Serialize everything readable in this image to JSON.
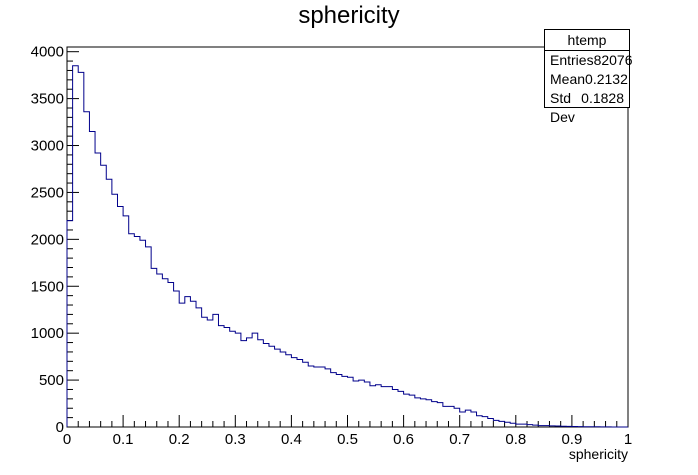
{
  "title": "sphericity",
  "stats": {
    "name": "htemp",
    "rows": [
      {
        "label": "Entries",
        "value": "82076"
      },
      {
        "label": "Mean",
        "value": "0.2132"
      },
      {
        "label": "Std Dev",
        "value": "0.1828"
      }
    ]
  },
  "chart_data": {
    "type": "bar",
    "title": "sphericity",
    "xlabel": "sphericity",
    "ylabel": "",
    "xlim": [
      0,
      1
    ],
    "ylim": [
      0,
      4050
    ],
    "bin_width": 0.01,
    "x_ticks": [
      0,
      0.1,
      0.2,
      0.3,
      0.4,
      0.5,
      0.6,
      0.7,
      0.8,
      0.9,
      1
    ],
    "x_tick_labels": [
      "0",
      "0.1",
      "0.2",
      "0.3",
      "0.4",
      "0.5",
      "0.6",
      "0.7",
      "0.8",
      "0.9",
      "1"
    ],
    "y_ticks": [
      0,
      500,
      1000,
      1500,
      2000,
      2500,
      3000,
      3500,
      4000
    ],
    "y_tick_labels": [
      "0",
      "500",
      "1000",
      "1500",
      "2000",
      "2500",
      "3000",
      "3500",
      "4000"
    ],
    "line_color": "#00008b",
    "series": [
      {
        "name": "htemp",
        "values": [
          2200,
          3850,
          3780,
          3360,
          3150,
          2920,
          2790,
          2640,
          2480,
          2350,
          2250,
          2060,
          2030,
          1990,
          1920,
          1690,
          1630,
          1580,
          1540,
          1450,
          1320,
          1390,
          1340,
          1270,
          1170,
          1140,
          1200,
          1080,
          1060,
          1020,
          1000,
          920,
          950,
          1000,
          930,
          890,
          860,
          830,
          800,
          770,
          740,
          720,
          690,
          650,
          640,
          640,
          620,
          580,
          560,
          540,
          530,
          490,
          500,
          480,
          440,
          450,
          430,
          430,
          400,
          380,
          350,
          340,
          310,
          300,
          290,
          270,
          260,
          220,
          220,
          200,
          160,
          180,
          160,
          120,
          110,
          90,
          70,
          60,
          50,
          40,
          30,
          30,
          25,
          20,
          15,
          15,
          12,
          10,
          8,
          6,
          5,
          4,
          3,
          2,
          2,
          1,
          1,
          0,
          0,
          0
        ]
      }
    ],
    "grid": false,
    "legend": "none"
  }
}
